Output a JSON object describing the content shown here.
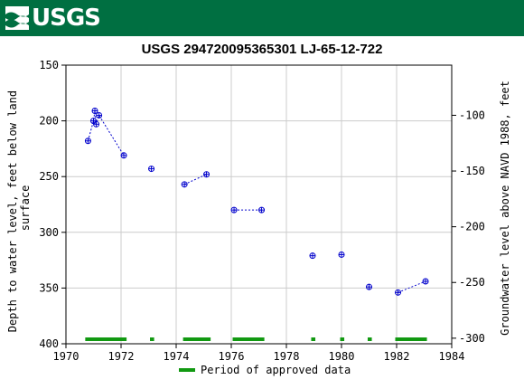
{
  "header": {
    "logo_text": "USGS"
  },
  "chart_data": {
    "type": "scatter",
    "title": "USGS 294720095365301 LJ-65-12-722",
    "xlabel": "",
    "ylabel_left": "Depth to water level, feet below land surface",
    "ylabel_left_lines": [
      "Depth to water level, feet below land",
      "surface"
    ],
    "ylabel_right": "Groundwater level above NAVD 1988, feet",
    "xlim": [
      1970,
      1984
    ],
    "ylim_left": [
      150,
      400
    ],
    "ylim_right": [
      -55,
      -305
    ],
    "left_inverted": true,
    "x_ticks": [
      "1970",
      "1972",
      "1974",
      "1976",
      "1978",
      "1980",
      "1982",
      "1984"
    ],
    "y_left_ticks": [
      "150",
      "200",
      "250",
      "300",
      "350",
      "400"
    ],
    "y_right_ticks": [
      "-100",
      "-150",
      "-200",
      "-250",
      "-300"
    ],
    "grid": true,
    "series": [
      {
        "marker": "circle-plus",
        "color": "#0000cc",
        "points": [
          {
            "x": 1970.8,
            "y": 218
          },
          {
            "x": 1971.0,
            "y": 200
          },
          {
            "x": 1971.05,
            "y": 191
          },
          {
            "x": 1971.1,
            "y": 203
          },
          {
            "x": 1971.2,
            "y": 195
          },
          {
            "x": 1972.1,
            "y": 231
          },
          {
            "x": 1973.1,
            "y": 243
          },
          {
            "x": 1974.3,
            "y": 257
          },
          {
            "x": 1975.1,
            "y": 248
          },
          {
            "x": 1976.1,
            "y": 280
          },
          {
            "x": 1977.1,
            "y": 280
          },
          {
            "x": 1978.95,
            "y": 321
          },
          {
            "x": 1980.0,
            "y": 320
          },
          {
            "x": 1981.0,
            "y": 349
          },
          {
            "x": 1982.05,
            "y": 354
          },
          {
            "x": 1983.05,
            "y": 344
          }
        ],
        "connected_segments": [
          [
            0,
            5
          ],
          [
            7,
            8
          ],
          [
            9,
            10
          ],
          [
            14,
            15
          ]
        ]
      }
    ],
    "approved_periods": [
      {
        "start": 1970.7,
        "end": 1972.2
      },
      {
        "start": 1973.05,
        "end": 1973.2
      },
      {
        "start": 1974.25,
        "end": 1975.25
      },
      {
        "start": 1976.05,
        "end": 1977.2
      },
      {
        "start": 1978.9,
        "end": 1979.05
      },
      {
        "start": 1979.95,
        "end": 1980.1
      },
      {
        "start": 1980.95,
        "end": 1981.1
      },
      {
        "start": 1981.95,
        "end": 1983.1
      }
    ],
    "legend": {
      "label": "Period of approved data",
      "color": "#119911",
      "placement": "bottom-center"
    }
  }
}
